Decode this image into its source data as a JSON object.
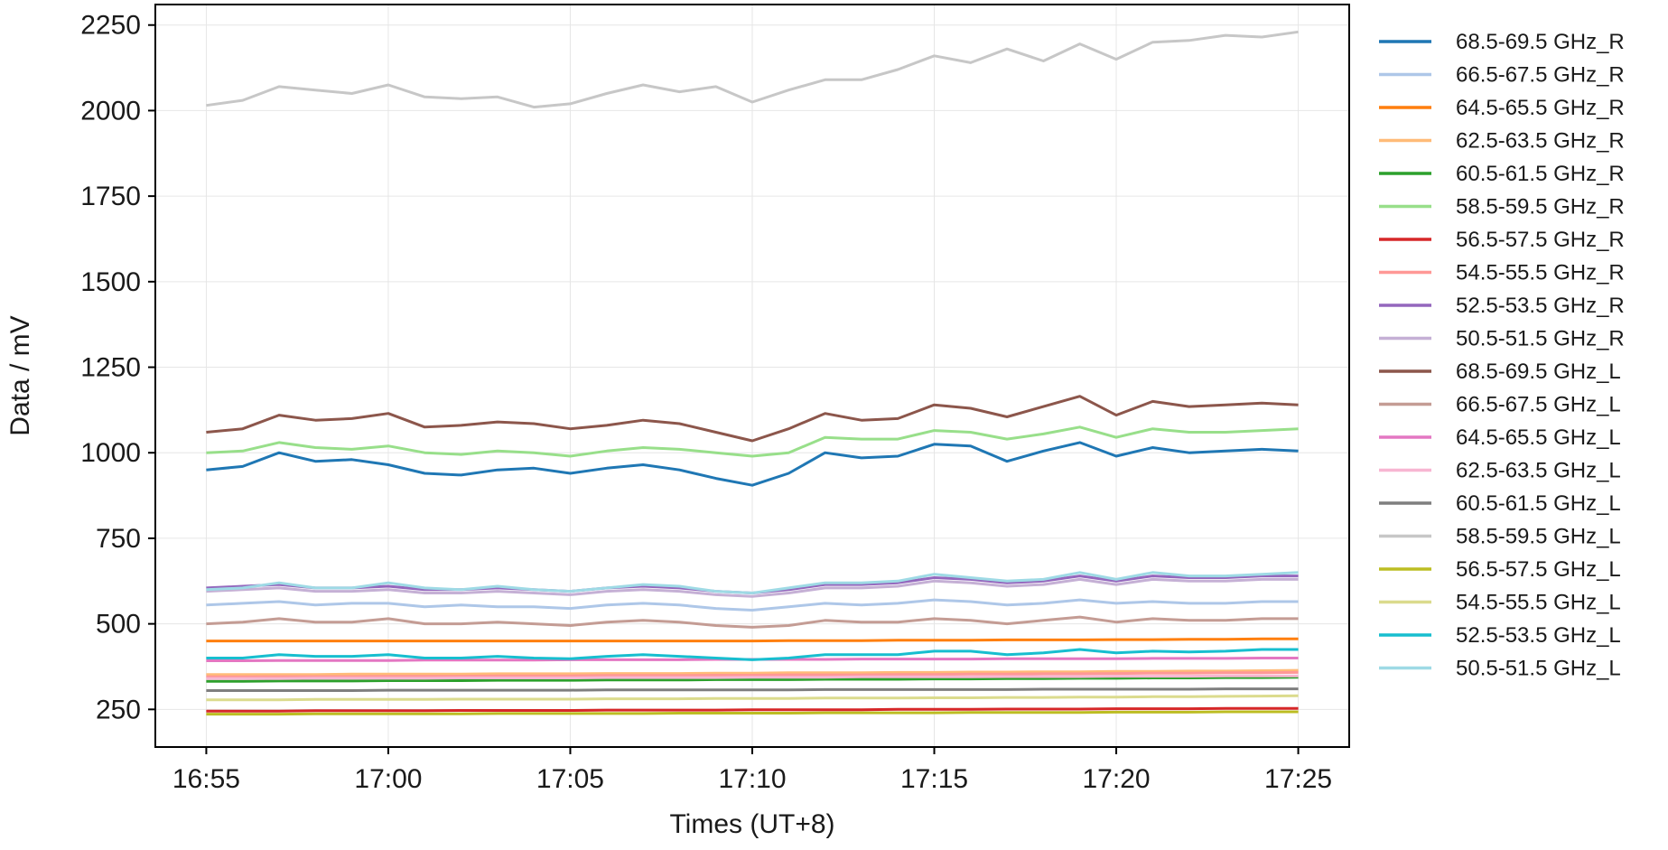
{
  "chart_data": {
    "type": "line",
    "xlabel": "Times (UT+8)",
    "ylabel": "Data / mV",
    "x_ticks": [
      "16:55",
      "17:00",
      "17:05",
      "17:10",
      "17:15",
      "17:20",
      "17:25"
    ],
    "x": [
      "16:55",
      "16:56",
      "16:57",
      "16:58",
      "16:59",
      "17:00",
      "17:01",
      "17:02",
      "17:03",
      "17:04",
      "17:05",
      "17:06",
      "17:07",
      "17:08",
      "17:09",
      "17:10",
      "17:11",
      "17:12",
      "17:13",
      "17:14",
      "17:15",
      "17:16",
      "17:17",
      "17:18",
      "17:19",
      "17:20",
      "17:21",
      "17:22",
      "17:23",
      "17:24",
      "17:25"
    ],
    "xlim": [
      "16:53.6",
      "17:26.4"
    ],
    "y_ticks": [
      250,
      500,
      750,
      1000,
      1250,
      1500,
      1750,
      2000,
      2250
    ],
    "ylim": [
      140,
      2310
    ],
    "grid": true,
    "legend_position": "outside-right",
    "series": [
      {
        "name": "68.5-69.5 GHz_R",
        "color": "#1f77b4",
        "values": [
          950,
          960,
          1000,
          975,
          980,
          965,
          940,
          935,
          950,
          955,
          940,
          955,
          965,
          950,
          925,
          905,
          940,
          1000,
          985,
          990,
          1025,
          1020,
          975,
          1005,
          1030,
          990,
          1015,
          1000,
          1005,
          1010,
          1005
        ]
      },
      {
        "name": "66.5-67.5 GHz_R",
        "color": "#aec7e8",
        "values": [
          555,
          560,
          565,
          555,
          560,
          560,
          550,
          555,
          550,
          550,
          545,
          555,
          560,
          555,
          545,
          540,
          550,
          560,
          555,
          560,
          570,
          565,
          555,
          560,
          570,
          560,
          565,
          560,
          560,
          565,
          565
        ]
      },
      {
        "name": "64.5-65.5 GHz_R",
        "color": "#ff7f0e",
        "values": [
          450,
          450,
          450,
          450,
          450,
          450,
          450,
          450,
          450,
          450,
          450,
          450,
          450,
          450,
          450,
          450,
          451,
          451,
          451,
          452,
          452,
          452,
          453,
          453,
          453,
          454,
          454,
          455,
          455,
          456,
          456
        ]
      },
      {
        "name": "62.5-63.5 GHz_R",
        "color": "#ffbb78",
        "values": [
          352,
          352,
          352,
          352,
          353,
          353,
          353,
          353,
          354,
          354,
          354,
          355,
          355,
          355,
          356,
          356,
          357,
          357,
          357,
          358,
          358,
          359,
          359,
          360,
          360,
          361,
          361,
          362,
          362,
          363,
          364
        ]
      },
      {
        "name": "60.5-61.5 GHz_R",
        "color": "#2ca02c",
        "values": [
          332,
          332,
          333,
          333,
          333,
          334,
          334,
          334,
          335,
          335,
          335,
          336,
          336,
          336,
          337,
          337,
          337,
          338,
          338,
          338,
          339,
          339,
          340,
          340,
          341,
          341,
          342,
          342,
          343,
          343,
          344
        ]
      },
      {
        "name": "58.5-59.5 GHz_R",
        "color": "#98df8a",
        "values": [
          1000,
          1005,
          1030,
          1015,
          1010,
          1020,
          1000,
          995,
          1005,
          1000,
          990,
          1005,
          1015,
          1010,
          1000,
          990,
          1000,
          1045,
          1040,
          1040,
          1065,
          1060,
          1040,
          1055,
          1075,
          1045,
          1070,
          1060,
          1060,
          1065,
          1070
        ]
      },
      {
        "name": "56.5-57.5 GHz_R",
        "color": "#d62728",
        "values": [
          245,
          245,
          245,
          246,
          246,
          246,
          246,
          247,
          247,
          247,
          247,
          248,
          248,
          248,
          248,
          249,
          249,
          249,
          249,
          250,
          250,
          250,
          251,
          251,
          251,
          252,
          252,
          252,
          253,
          253,
          253
        ]
      },
      {
        "name": "54.5-55.5 GHz_R",
        "color": "#ff9896",
        "values": [
          345,
          345,
          346,
          346,
          346,
          347,
          347,
          347,
          348,
          348,
          348,
          349,
          349,
          349,
          350,
          350,
          351,
          351,
          351,
          352,
          352,
          353,
          353,
          354,
          354,
          355,
          356,
          356,
          357,
          357,
          358
        ]
      },
      {
        "name": "52.5-53.5 GHz_R",
        "color": "#9467bd",
        "values": [
          605,
          610,
          615,
          605,
          605,
          610,
          600,
          600,
          605,
          600,
          595,
          605,
          610,
          605,
          595,
          590,
          600,
          615,
          615,
          620,
          635,
          630,
          620,
          625,
          640,
          625,
          640,
          635,
          635,
          640,
          640
        ]
      },
      {
        "name": "50.5-51.5 GHz_R",
        "color": "#c5b0d5",
        "values": [
          595,
          600,
          605,
          595,
          595,
          600,
          590,
          590,
          595,
          590,
          585,
          595,
          600,
          595,
          585,
          580,
          590,
          605,
          605,
          610,
          625,
          620,
          610,
          615,
          630,
          615,
          630,
          625,
          625,
          630,
          630
        ]
      },
      {
        "name": "68.5-69.5 GHz_L",
        "color": "#8c564b",
        "values": [
          1060,
          1070,
          1110,
          1095,
          1100,
          1115,
          1075,
          1080,
          1090,
          1085,
          1070,
          1080,
          1095,
          1085,
          1060,
          1035,
          1070,
          1115,
          1095,
          1100,
          1140,
          1130,
          1105,
          1135,
          1165,
          1110,
          1150,
          1135,
          1140,
          1145,
          1140
        ]
      },
      {
        "name": "66.5-67.5 GHz_L",
        "color": "#c49c94",
        "values": [
          500,
          505,
          515,
          505,
          505,
          515,
          500,
          500,
          505,
          500,
          495,
          505,
          510,
          505,
          495,
          490,
          495,
          510,
          505,
          505,
          515,
          510,
          500,
          510,
          520,
          505,
          515,
          510,
          510,
          515,
          515
        ]
      },
      {
        "name": "64.5-65.5 GHz_L",
        "color": "#e377c2",
        "values": [
          392,
          392,
          393,
          393,
          393,
          393,
          394,
          394,
          394,
          394,
          395,
          395,
          395,
          395,
          396,
          396,
          396,
          396,
          397,
          397,
          397,
          397,
          398,
          398,
          398,
          398,
          399,
          399,
          399,
          400,
          400
        ]
      },
      {
        "name": "62.5-63.5 GHz_L",
        "color": "#f7b6d2",
        "values": [
          340,
          340,
          340,
          341,
          341,
          341,
          341,
          342,
          342,
          342,
          342,
          343,
          343,
          343,
          343,
          344,
          344,
          344,
          345,
          345,
          345,
          345,
          346,
          346,
          346,
          347,
          347,
          347,
          348,
          348,
          348
        ]
      },
      {
        "name": "60.5-61.5 GHz_L",
        "color": "#7f7f7f",
        "values": [
          305,
          305,
          305,
          305,
          305,
          306,
          306,
          306,
          306,
          306,
          306,
          307,
          307,
          307,
          307,
          307,
          307,
          308,
          308,
          308,
          308,
          308,
          308,
          309,
          309,
          309,
          309,
          309,
          310,
          310,
          310
        ]
      },
      {
        "name": "58.5-59.5 GHz_L",
        "color": "#c7c7c7",
        "values": [
          2015,
          2030,
          2070,
          2060,
          2050,
          2075,
          2040,
          2035,
          2040,
          2010,
          2020,
          2050,
          2075,
          2055,
          2070,
          2025,
          2060,
          2090,
          2090,
          2120,
          2160,
          2140,
          2180,
          2145,
          2195,
          2150,
          2200,
          2205,
          2220,
          2215,
          2230
        ]
      },
      {
        "name": "56.5-57.5 GHz_L",
        "color": "#bcbd22",
        "values": [
          236,
          236,
          236,
          237,
          237,
          237,
          237,
          237,
          238,
          238,
          238,
          238,
          238,
          239,
          239,
          239,
          239,
          240,
          240,
          240,
          240,
          241,
          241,
          241,
          241,
          242,
          242,
          242,
          243,
          243,
          243
        ]
      },
      {
        "name": "54.5-55.5 GHz_L",
        "color": "#dbdb8d",
        "values": [
          278,
          278,
          278,
          279,
          279,
          279,
          279,
          280,
          280,
          280,
          280,
          281,
          281,
          281,
          282,
          282,
          282,
          283,
          283,
          283,
          284,
          284,
          285,
          285,
          286,
          286,
          287,
          287,
          288,
          289,
          290
        ]
      },
      {
        "name": "52.5-53.5 GHz_L",
        "color": "#17becf",
        "values": [
          400,
          400,
          410,
          405,
          405,
          410,
          400,
          400,
          405,
          400,
          398,
          405,
          410,
          405,
          400,
          395,
          400,
          410,
          410,
          410,
          420,
          420,
          410,
          415,
          425,
          415,
          420,
          418,
          420,
          425,
          425
        ]
      },
      {
        "name": "50.5-51.5 GHz_L",
        "color": "#9edae5",
        "values": [
          600,
          605,
          620,
          605,
          605,
          620,
          605,
          600,
          610,
          600,
          595,
          605,
          615,
          610,
          595,
          590,
          605,
          620,
          620,
          625,
          645,
          635,
          625,
          630,
          650,
          630,
          650,
          640,
          640,
          645,
          650
        ]
      }
    ]
  }
}
